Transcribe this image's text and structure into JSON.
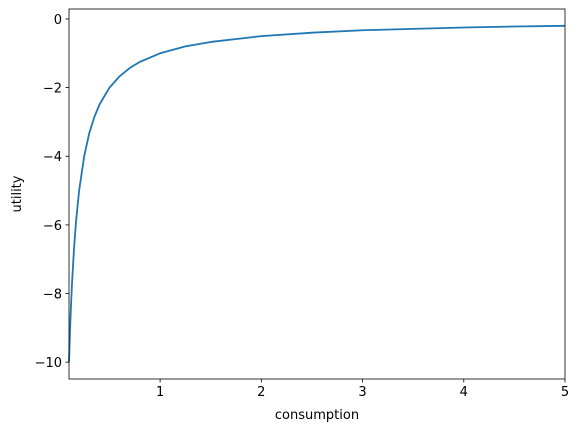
{
  "chart_data": {
    "type": "line",
    "x_label": "consumption",
    "y_label": "utility",
    "x": [
      0.1,
      0.11,
      0.12,
      0.13,
      0.15,
      0.17,
      0.2,
      0.25,
      0.3,
      0.35,
      0.4,
      0.5,
      0.6,
      0.7,
      0.8,
      1,
      1.25,
      1.5,
      2,
      2.5,
      3,
      3.5,
      4,
      4.5,
      5
    ],
    "series": [
      {
        "color": "#1f77b4",
        "values": [
          -10,
          -9.09,
          -8.33,
          -7.69,
          -6.67,
          -5.88,
          -5,
          -4,
          -3.33,
          -2.86,
          -2.5,
          -2,
          -1.67,
          -1.43,
          -1.25,
          -1,
          -0.8,
          -0.67,
          -0.5,
          -0.4,
          -0.33,
          -0.29,
          -0.25,
          -0.22,
          -0.2
        ]
      }
    ],
    "xlim": [
      0.1,
      5
    ],
    "ylim": [
      -10.49,
      0.29
    ],
    "xticks": [
      1,
      2,
      3,
      4,
      5
    ],
    "yticks": [
      0,
      {
        "value": -2,
        "label": "−2"
      },
      {
        "value": -4,
        "label": "−4"
      },
      {
        "value": -6,
        "label": "−6"
      },
      {
        "value": -8,
        "label": "−8"
      },
      {
        "value": -10,
        "label": "−10"
      }
    ],
    "grid": false
  }
}
